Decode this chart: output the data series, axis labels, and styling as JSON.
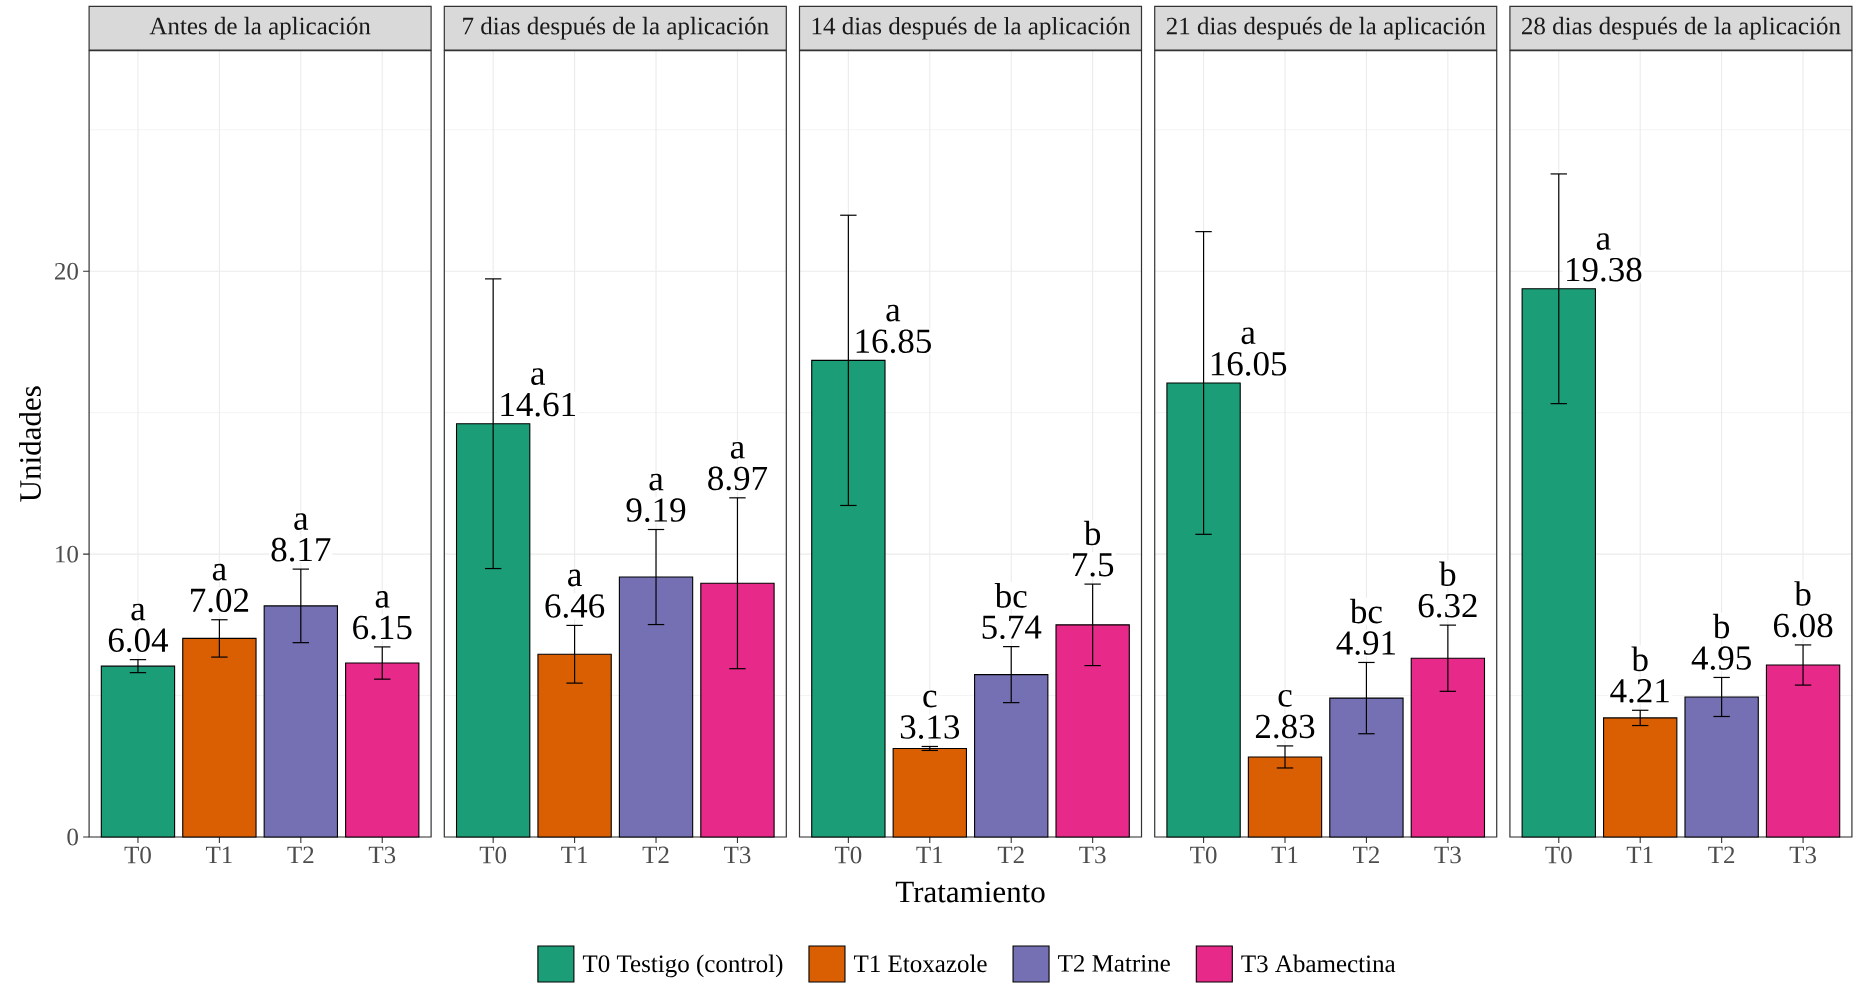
{
  "chart_data": [
    {
      "type": "bar",
      "title": "Antes de la aplicación",
      "ylabel": "Unidades",
      "categories": [
        "T0",
        "T1",
        "T2",
        "T3"
      ],
      "series": [
        {
          "color": "#1b9e77",
          "values": [
            6.04,
            null,
            null,
            null
          ],
          "errors": [
            0.23,
            null,
            null,
            null
          ]
        },
        {
          "color": "#d95f02",
          "values": [
            null,
            7.02,
            null,
            null
          ],
          "errors": [
            null,
            0.66,
            null,
            null
          ]
        },
        {
          "color": "#7570b3",
          "values": [
            null,
            null,
            8.17,
            null
          ],
          "errors": [
            null,
            null,
            1.3,
            null
          ]
        },
        {
          "color": "#e7298a",
          "values": [
            null,
            null,
            null,
            6.15
          ],
          "errors": [
            null,
            null,
            null,
            0.57
          ]
        }
      ],
      "ylim": [
        0,
        27.8
      ],
      "yticks": [
        0,
        {
          "value": 5,
          "label": null
        },
        10,
        {
          "value": 15,
          "label": null
        },
        20,
        {
          "value": 25,
          "label": null
        }
      ],
      "grid": true,
      "data_labels": true,
      "annotations": [
        "a",
        "a",
        "a",
        "a"
      ]
    },
    {
      "type": "bar",
      "title": "7 dias después de la aplicación",
      "categories": [
        "T0",
        "T1",
        "T2",
        "T3"
      ],
      "series": [
        {
          "color": "#1b9e77",
          "values": [
            14.61,
            null,
            null,
            null
          ],
          "errors": [
            5.12,
            null,
            null,
            null
          ]
        },
        {
          "color": "#d95f02",
          "values": [
            null,
            6.46,
            null,
            null
          ],
          "errors": [
            null,
            1.02,
            null,
            null
          ]
        },
        {
          "color": "#7570b3",
          "values": [
            null,
            null,
            9.19,
            null
          ],
          "errors": [
            null,
            null,
            1.68,
            null
          ]
        },
        {
          "color": "#e7298a",
          "values": [
            null,
            null,
            null,
            8.97
          ],
          "errors": [
            null,
            null,
            null,
            3.02
          ]
        }
      ],
      "ylim": [
        0,
        27.8
      ],
      "yticks": [
        0,
        {
          "value": 5,
          "label": null
        },
        10,
        {
          "value": 15,
          "label": null
        },
        20,
        {
          "value": 25,
          "label": null
        }
      ],
      "tick_labels": "x",
      "grid": true,
      "data_labels": true,
      "annotations": [
        "a",
        "a",
        "a",
        "a"
      ]
    },
    {
      "type": "bar",
      "title": "14 dias después de la aplicación",
      "xlabel": "Tratamiento",
      "categories": [
        "T0",
        "T1",
        "T2",
        "T3"
      ],
      "series": [
        {
          "name": "T0 Testigo (control)",
          "color": "#1b9e77",
          "values": [
            16.85,
            null,
            null,
            null
          ],
          "errors": [
            5.13,
            null,
            null,
            null
          ]
        },
        {
          "name": "T1 Etoxazole",
          "color": "#d95f02",
          "values": [
            null,
            3.13,
            null,
            null
          ],
          "errors": [
            null,
            0.07,
            null,
            null
          ]
        },
        {
          "name": "T2 Matrine",
          "color": "#7570b3",
          "values": [
            null,
            null,
            5.74,
            null
          ],
          "errors": [
            null,
            null,
            0.99,
            null
          ]
        },
        {
          "name": "T3 Abamectina",
          "color": "#e7298a",
          "values": [
            null,
            null,
            null,
            7.5
          ],
          "errors": [
            null,
            null,
            null,
            1.44
          ]
        }
      ],
      "ylim": [
        0,
        27.8
      ],
      "yticks": [
        0,
        {
          "value": 5,
          "label": null
        },
        10,
        {
          "value": 15,
          "label": null
        },
        20,
        {
          "value": 25,
          "label": null
        }
      ],
      "tick_labels": "x",
      "grid": true,
      "legend": "bottom",
      "data_labels": true,
      "annotations": [
        "a",
        "c",
        "bc",
        "b"
      ]
    },
    {
      "type": "bar",
      "title": "21 dias después de la aplicación",
      "categories": [
        "T0",
        "T1",
        "T2",
        "T3"
      ],
      "series": [
        {
          "color": "#1b9e77",
          "values": [
            16.05,
            null,
            null,
            null
          ],
          "errors": [
            5.35,
            null,
            null,
            null
          ]
        },
        {
          "color": "#d95f02",
          "values": [
            null,
            2.83,
            null,
            null
          ],
          "errors": [
            null,
            0.39,
            null,
            null
          ]
        },
        {
          "color": "#7570b3",
          "values": [
            null,
            null,
            4.91,
            null
          ],
          "errors": [
            null,
            null,
            1.26,
            null
          ]
        },
        {
          "color": "#e7298a",
          "values": [
            null,
            null,
            null,
            6.32
          ],
          "errors": [
            null,
            null,
            null,
            1.17
          ]
        }
      ],
      "ylim": [
        0,
        27.8
      ],
      "yticks": [
        0,
        {
          "value": 5,
          "label": null
        },
        10,
        {
          "value": 15,
          "label": null
        },
        20,
        {
          "value": 25,
          "label": null
        }
      ],
      "tick_labels": "x",
      "grid": true,
      "data_labels": true,
      "annotations": [
        "a",
        "c",
        "bc",
        "b"
      ]
    },
    {
      "type": "bar",
      "title": "28 dias después de la aplicación",
      "categories": [
        "T0",
        "T1",
        "T2",
        "T3"
      ],
      "series": [
        {
          "color": "#1b9e77",
          "values": [
            19.38,
            null,
            null,
            null
          ],
          "errors": [
            4.06,
            null,
            null,
            null
          ]
        },
        {
          "color": "#d95f02",
          "values": [
            null,
            4.21,
            null,
            null
          ],
          "errors": [
            null,
            0.27,
            null,
            null
          ]
        },
        {
          "color": "#7570b3",
          "values": [
            null,
            null,
            4.95,
            null
          ],
          "errors": [
            null,
            null,
            0.69,
            null
          ]
        },
        {
          "color": "#e7298a",
          "values": [
            null,
            null,
            null,
            6.08
          ],
          "errors": [
            null,
            null,
            null,
            0.71
          ]
        }
      ],
      "ylim": [
        0,
        27.8
      ],
      "yticks": [
        0,
        {
          "value": 5,
          "label": null
        },
        10,
        {
          "value": 15,
          "label": null
        },
        20,
        {
          "value": 25,
          "label": null
        }
      ],
      "tick_labels": "x",
      "grid": true,
      "data_labels": true,
      "annotations": [
        "a",
        "b",
        "b",
        "b"
      ]
    }
  ]
}
